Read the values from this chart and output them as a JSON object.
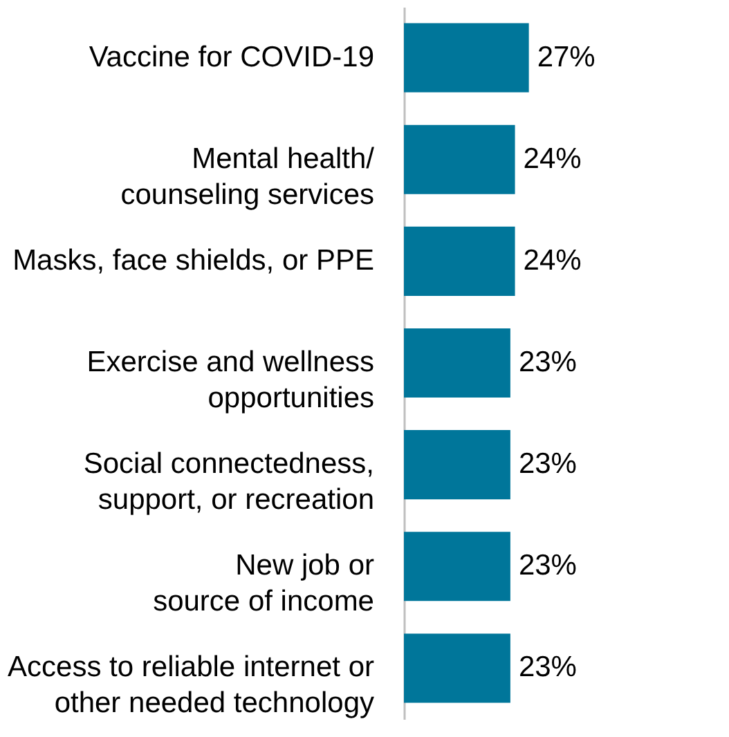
{
  "chart_data": {
    "type": "bar",
    "orientation": "horizontal",
    "categories": [
      "Vaccine for COVID-19",
      "Mental health/\ncounseling services",
      "Masks, face shields, or PPE",
      "Exercise and wellness\nopportunities",
      "Social connectedness,\nsupport, or recreation",
      "New job or\nsource of income",
      "Access to reliable internet or\nother needed technology"
    ],
    "values": [
      27,
      24,
      24,
      23,
      23,
      23,
      23
    ],
    "value_labels": [
      "27%",
      "24%",
      "24%",
      "23%",
      "23%",
      "23%",
      "23%"
    ],
    "color": "#00769a",
    "grid": false
  }
}
